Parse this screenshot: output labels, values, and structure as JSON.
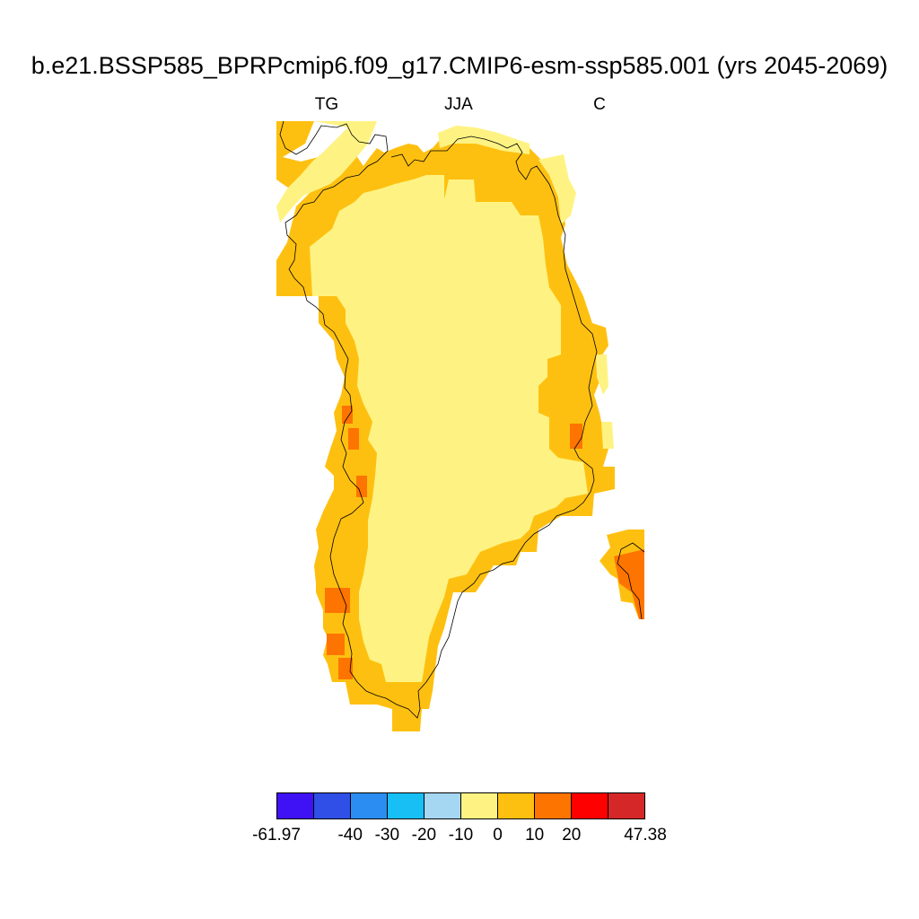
{
  "title": "b.e21.BSSP585_BPRPcmip6.f09_g17.CMIP6-esm-ssp585.001 (yrs 2045-2069)",
  "subtitle": {
    "left": "TG",
    "center": "JJA",
    "right": "C"
  },
  "colorbar": {
    "colors": [
      "#3f12f6",
      "#2f4fe6",
      "#2b8df2",
      "#17bff5",
      "#a5d6f2",
      "#fef382",
      "#fec010",
      "#fe7400",
      "#fe0000",
      "#d62728"
    ],
    "tick_labels": [
      "-61.97",
      "-40",
      "-30",
      "-20",
      "-10",
      "0",
      "10",
      "20",
      "47.38"
    ]
  },
  "legend": {
    "land_color": "#ffffff",
    "ice_interior_color": "#fef382",
    "coast_color": "#fec010",
    "warm_spot_color": "#fe7400"
  }
}
